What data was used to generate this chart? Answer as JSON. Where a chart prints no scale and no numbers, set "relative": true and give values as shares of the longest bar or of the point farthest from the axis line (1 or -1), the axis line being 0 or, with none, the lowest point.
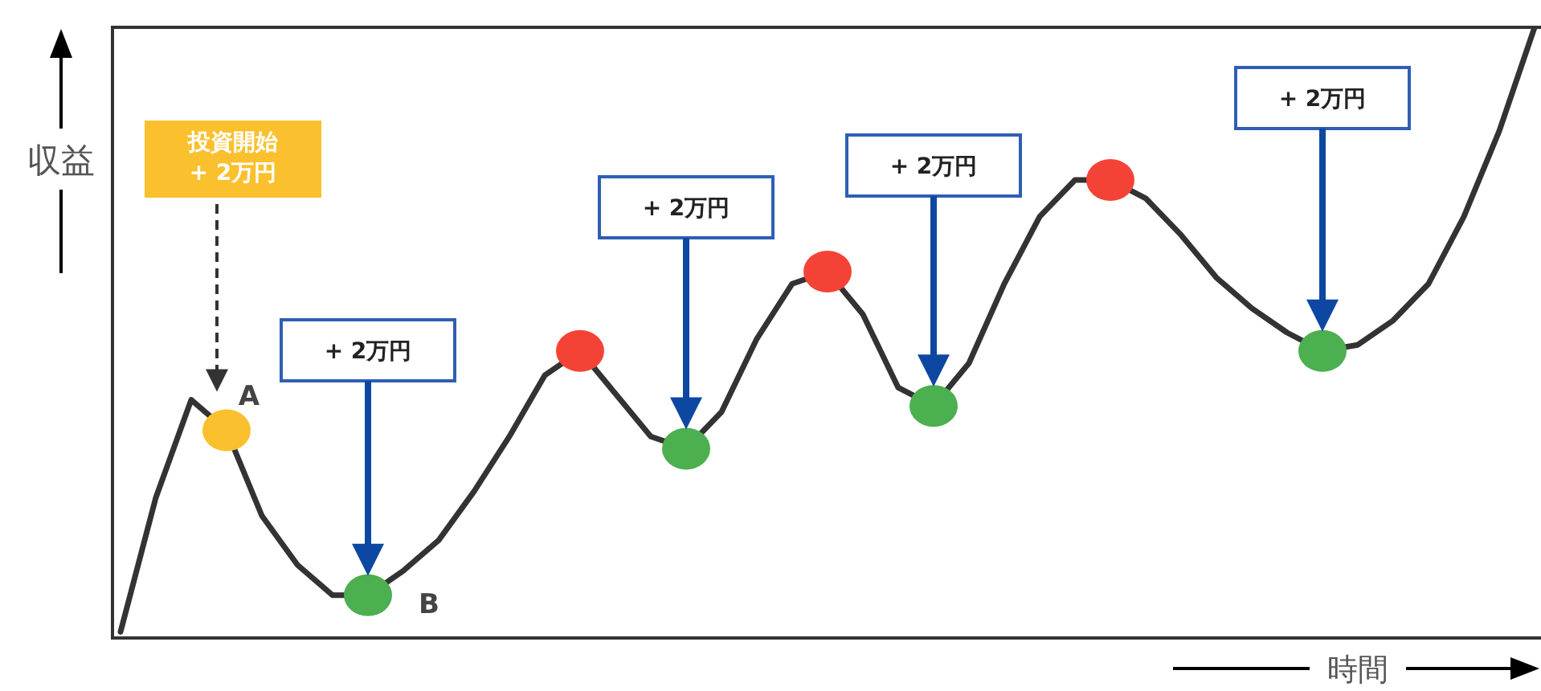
{
  "chart_data": {
    "type": "line",
    "relative": true,
    "xlabel": "時間",
    "ylabel": "収益",
    "categories": [
      null,
      null,
      null,
      null,
      null,
      null,
      null,
      null,
      null,
      null,
      null,
      null,
      null,
      null,
      null,
      null,
      null,
      null,
      null,
      null,
      null,
      null,
      null,
      null,
      null,
      null,
      null,
      null,
      null,
      null,
      null,
      null,
      null,
      null,
      null,
      null,
      null,
      null,
      null,
      null,
      null
    ],
    "series": [
      {
        "color": "#333333",
        "values": [
          0.01,
          0.23,
          0.39,
          0.34,
          0.2,
          0.12,
          0.07,
          0.07,
          0.11,
          0.16,
          0.24,
          0.33,
          0.43,
          0.47,
          0.4,
          0.33,
          0.31,
          0.37,
          0.49,
          0.58,
          0.6,
          0.53,
          0.41,
          0.38,
          0.45,
          0.58,
          0.69,
          0.75,
          0.75,
          0.72,
          0.66,
          0.59,
          0.54,
          0.5,
          0.47,
          0.48,
          0.52,
          0.58,
          0.69,
          0.83,
          1
        ],
        "colors": [
          null,
          null,
          null,
          "#fbc02d",
          null,
          null,
          null,
          "#4caf50",
          null,
          null,
          null,
          null,
          null,
          "#f44336",
          null,
          null,
          "#4caf50",
          null,
          null,
          null,
          "#f44336",
          null,
          null,
          "#4caf50",
          null,
          null,
          null,
          null,
          "#f44336",
          null,
          null,
          null,
          null,
          null,
          "#4caf50",
          null,
          null,
          null,
          null,
          null,
          null
        ]
      }
    ],
    "annotations": [
      "投資開始\n+ 2万円",
      "A",
      "+ 2万円",
      "B",
      "+ 2万円",
      "+ 2万円",
      "+ 2万円"
    ],
    "grid": false
  }
}
